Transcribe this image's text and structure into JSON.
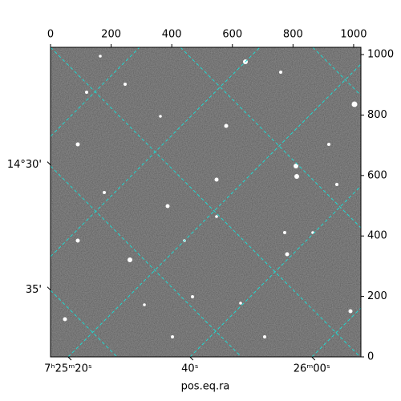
{
  "chart_data": {
    "type": "image",
    "xlabel": "pos.eq.ra",
    "xlim": [
      0,
      1024
    ],
    "xticks": [
      0,
      200,
      400,
      600,
      800,
      1000
    ],
    "ylim": [
      0,
      1024
    ],
    "yticks": [
      0,
      200,
      400,
      600,
      800,
      1000
    ],
    "ra_ticks": [
      {
        "value": 58,
        "label": "7ʰ25ᵐ20ˢ"
      },
      {
        "value": 460,
        "label": "40ˢ"
      },
      {
        "value": 862,
        "label": "26ᵐ00ˢ"
      }
    ],
    "dec_ticks": [
      {
        "value": 635,
        "label": "14°30'"
      },
      {
        "value": 221,
        "label": "35'"
      }
    ]
  }
}
